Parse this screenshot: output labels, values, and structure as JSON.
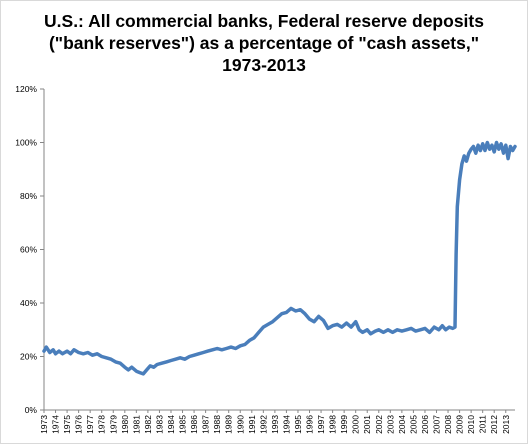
{
  "chart_data": {
    "type": "line",
    "title_lines": [
      "U.S.: All commercial banks, Federal reserve deposits",
      "(\"bank reserves\") as a percentage of \"cash assets,\"",
      "1973-2013"
    ],
    "xlabel": "",
    "ylabel": "",
    "x_ticks": [
      "1973",
      "1974",
      "1975",
      "1976",
      "1977",
      "1978",
      "1979",
      "1980",
      "1981",
      "1982",
      "1983",
      "1984",
      "1985",
      "1986",
      "1987",
      "1988",
      "1989",
      "1990",
      "1991",
      "1992",
      "1993",
      "1994",
      "1995",
      "1996",
      "1997",
      "1998",
      "1999",
      "2000",
      "2001",
      "2002",
      "2003",
      "2004",
      "2005",
      "2006",
      "2007",
      "2008",
      "2009",
      "2010",
      "2011",
      "2012",
      "2013"
    ],
    "y_ticks": [
      "0%",
      "20%",
      "40%",
      "60%",
      "80%",
      "100%",
      "120%"
    ],
    "xlim": [
      1973,
      2013.8
    ],
    "ylim": [
      0,
      120
    ],
    "grid": false,
    "legend": "none",
    "series": [
      {
        "color": "#4a7ebb",
        "points": [
          [
            1973.0,
            22
          ],
          [
            1973.2,
            23.5
          ],
          [
            1973.5,
            21.5
          ],
          [
            1973.8,
            22.5
          ],
          [
            1974.0,
            21
          ],
          [
            1974.3,
            22
          ],
          [
            1974.6,
            21
          ],
          [
            1975.0,
            22
          ],
          [
            1975.3,
            21
          ],
          [
            1975.6,
            22.5
          ],
          [
            1976.0,
            21.5
          ],
          [
            1976.4,
            21
          ],
          [
            1976.8,
            21.5
          ],
          [
            1977.2,
            20.5
          ],
          [
            1977.6,
            21
          ],
          [
            1978.0,
            20
          ],
          [
            1978.4,
            19.5
          ],
          [
            1978.8,
            19
          ],
          [
            1979.2,
            18
          ],
          [
            1979.6,
            17.5
          ],
          [
            1980.0,
            16
          ],
          [
            1980.3,
            15
          ],
          [
            1980.6,
            16
          ],
          [
            1981.0,
            14.5
          ],
          [
            1981.3,
            14
          ],
          [
            1981.6,
            13.5
          ],
          [
            1981.9,
            15
          ],
          [
            1982.2,
            16.5
          ],
          [
            1982.5,
            16
          ],
          [
            1982.8,
            17
          ],
          [
            1983.2,
            17.5
          ],
          [
            1983.6,
            18
          ],
          [
            1984.0,
            18.5
          ],
          [
            1984.4,
            19
          ],
          [
            1984.8,
            19.5
          ],
          [
            1985.2,
            19
          ],
          [
            1985.6,
            20
          ],
          [
            1986.0,
            20.5
          ],
          [
            1986.4,
            21
          ],
          [
            1986.8,
            21.5
          ],
          [
            1987.2,
            22
          ],
          [
            1987.6,
            22.5
          ],
          [
            1988.0,
            23
          ],
          [
            1988.4,
            22.5
          ],
          [
            1988.8,
            23
          ],
          [
            1989.2,
            23.5
          ],
          [
            1989.6,
            23
          ],
          [
            1990.0,
            24
          ],
          [
            1990.4,
            24.5
          ],
          [
            1990.8,
            26
          ],
          [
            1991.2,
            27
          ],
          [
            1991.6,
            29
          ],
          [
            1992.0,
            31
          ],
          [
            1992.4,
            32
          ],
          [
            1992.8,
            33
          ],
          [
            1993.2,
            34.5
          ],
          [
            1993.6,
            36
          ],
          [
            1994.0,
            36.5
          ],
          [
            1994.4,
            38
          ],
          [
            1994.8,
            37
          ],
          [
            1995.2,
            37.5
          ],
          [
            1995.6,
            36
          ],
          [
            1996.0,
            34
          ],
          [
            1996.4,
            33
          ],
          [
            1996.8,
            35
          ],
          [
            1997.2,
            33.5
          ],
          [
            1997.6,
            30.5
          ],
          [
            1998.0,
            31.5
          ],
          [
            1998.4,
            32
          ],
          [
            1998.8,
            31
          ],
          [
            1999.2,
            32.5
          ],
          [
            1999.6,
            31
          ],
          [
            2000.0,
            33
          ],
          [
            2000.3,
            30
          ],
          [
            2000.6,
            29
          ],
          [
            2001.0,
            30
          ],
          [
            2001.3,
            28.5
          ],
          [
            2001.7,
            29.5
          ],
          [
            2002.0,
            30
          ],
          [
            2002.4,
            29
          ],
          [
            2002.8,
            30
          ],
          [
            2003.2,
            29
          ],
          [
            2003.6,
            30
          ],
          [
            2004.0,
            29.5
          ],
          [
            2004.4,
            30
          ],
          [
            2004.8,
            30.5
          ],
          [
            2005.2,
            29.5
          ],
          [
            2005.6,
            30
          ],
          [
            2006.0,
            30.5
          ],
          [
            2006.4,
            29
          ],
          [
            2006.8,
            31
          ],
          [
            2007.2,
            30
          ],
          [
            2007.5,
            31.5
          ],
          [
            2007.8,
            30
          ],
          [
            2008.1,
            31
          ],
          [
            2008.4,
            30.5
          ],
          [
            2008.6,
            31
          ],
          [
            2008.7,
            58
          ],
          [
            2008.8,
            76
          ],
          [
            2009.0,
            86
          ],
          [
            2009.2,
            92
          ],
          [
            2009.4,
            95
          ],
          [
            2009.6,
            93
          ],
          [
            2009.8,
            96
          ],
          [
            2010.0,
            97.5
          ],
          [
            2010.2,
            98.5
          ],
          [
            2010.4,
            96
          ],
          [
            2010.6,
            99
          ],
          [
            2010.8,
            97
          ],
          [
            2011.0,
            99.5
          ],
          [
            2011.2,
            97
          ],
          [
            2011.4,
            100
          ],
          [
            2011.6,
            97.5
          ],
          [
            2011.8,
            99
          ],
          [
            2012.0,
            96.5
          ],
          [
            2012.2,
            100
          ],
          [
            2012.4,
            97.5
          ],
          [
            2012.6,
            99.5
          ],
          [
            2012.8,
            96
          ],
          [
            2013.0,
            99
          ],
          [
            2013.2,
            94
          ],
          [
            2013.4,
            98.5
          ],
          [
            2013.6,
            97
          ],
          [
            2013.8,
            98.5
          ]
        ]
      }
    ]
  }
}
